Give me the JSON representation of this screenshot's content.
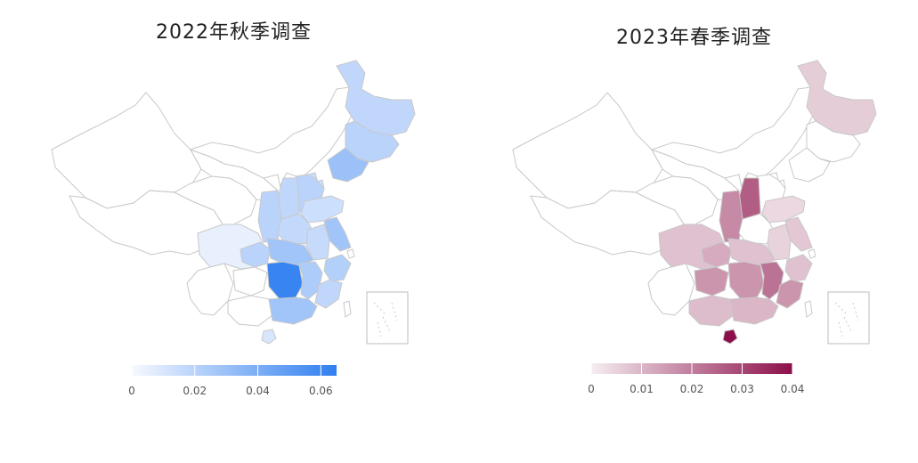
{
  "maps": [
    {
      "title": "2022年秋季调查",
      "colors": {
        "low": "#f7f9ff",
        "high": "#2f7ff0",
        "border": "#c8c8c8"
      },
      "legend": {
        "min": 0,
        "max": 0.065,
        "ticks": [
          "0",
          "0.02",
          "0.04",
          "0.06"
        ],
        "tick_values": [
          0,
          0.02,
          0.04,
          0.06
        ]
      },
      "regions": [
        {
          "name": "黑龙江",
          "value": 0.018
        },
        {
          "name": "吉林",
          "value": 0.02
        },
        {
          "name": "辽宁",
          "value": 0.03
        },
        {
          "name": "北京",
          "value": 0.015
        },
        {
          "name": "天津",
          "value": 0.012
        },
        {
          "name": "河北",
          "value": 0.02
        },
        {
          "name": "山东",
          "value": 0.014
        },
        {
          "name": "山西",
          "value": 0.018
        },
        {
          "name": "陕西",
          "value": 0.02
        },
        {
          "name": "河南",
          "value": 0.017
        },
        {
          "name": "四川",
          "value": 0.005
        },
        {
          "name": "重庆",
          "value": 0.02
        },
        {
          "name": "湖北",
          "value": 0.028
        },
        {
          "name": "江苏",
          "value": 0.028
        },
        {
          "name": "安徽",
          "value": 0.016
        },
        {
          "name": "浙江",
          "value": 0.022
        },
        {
          "name": "湖南",
          "value": 0.062
        },
        {
          "name": "江西",
          "value": 0.024
        },
        {
          "name": "福建",
          "value": 0.018
        },
        {
          "name": "广东",
          "value": 0.028
        },
        {
          "name": "海南",
          "value": 0.01
        }
      ]
    },
    {
      "title": "2023年春季调查",
      "colors": {
        "low": "#f5eef1",
        "high": "#8c0f4a",
        "border": "#c8c8c8"
      },
      "legend": {
        "min": 0,
        "max": 0.04,
        "ticks": [
          "0",
          "0.01",
          "0.02",
          "0.03",
          "0.04"
        ],
        "tick_values": [
          0,
          0.01,
          0.02,
          0.03,
          0.04
        ]
      },
      "regions": [
        {
          "name": "黑龙江",
          "value": 0.006
        },
        {
          "name": "山西",
          "value": 0.026
        },
        {
          "name": "陕西",
          "value": 0.018
        },
        {
          "name": "山东",
          "value": 0.004
        },
        {
          "name": "江苏",
          "value": 0.007
        },
        {
          "name": "四川",
          "value": 0.008
        },
        {
          "name": "重庆",
          "value": 0.012
        },
        {
          "name": "湖北",
          "value": 0.008
        },
        {
          "name": "安徽",
          "value": 0.005
        },
        {
          "name": "贵州",
          "value": 0.016
        },
        {
          "name": "湖南",
          "value": 0.016
        },
        {
          "name": "江西",
          "value": 0.022
        },
        {
          "name": "浙江",
          "value": 0.008
        },
        {
          "name": "福建",
          "value": 0.016
        },
        {
          "name": "广东",
          "value": 0.01
        },
        {
          "name": "广西",
          "value": 0.009
        },
        {
          "name": "海南",
          "value": 0.04
        }
      ]
    }
  ]
}
